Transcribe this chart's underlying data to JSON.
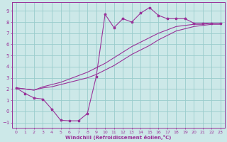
{
  "bg_color": "#cce8e8",
  "line_color": "#993399",
  "grid_color": "#99cccc",
  "xlabel": "Windchill (Refroidissement éolien,°C)",
  "xlabel_color": "#993399",
  "tick_color": "#993399",
  "xlim": [
    -0.5,
    23.5
  ],
  "ylim": [
    -1.5,
    9.8
  ],
  "yticks": [
    -1,
    0,
    1,
    2,
    3,
    4,
    5,
    6,
    7,
    8,
    9
  ],
  "xticks": [
    0,
    1,
    2,
    3,
    4,
    5,
    6,
    7,
    8,
    9,
    10,
    11,
    12,
    13,
    14,
    15,
    16,
    17,
    18,
    19,
    20,
    21,
    22,
    23
  ],
  "line1_x": [
    0,
    1,
    2,
    3,
    4,
    5,
    6,
    7,
    8,
    9,
    10,
    11,
    12,
    13,
    14,
    15,
    16,
    17,
    18,
    19,
    20,
    21,
    22,
    23
  ],
  "line1_y": [
    2.1,
    1.6,
    1.2,
    1.1,
    0.2,
    -0.8,
    -0.85,
    -0.85,
    -0.2,
    3.1,
    8.7,
    7.5,
    8.3,
    8.0,
    8.8,
    9.3,
    8.6,
    8.3,
    8.3,
    8.3,
    7.9,
    7.9,
    7.9,
    7.9
  ],
  "line2_x": [
    0,
    1,
    2,
    3,
    4,
    5,
    6,
    7,
    8,
    9,
    10,
    11,
    12,
    13,
    14,
    15,
    16,
    17,
    18,
    19,
    20,
    21,
    22,
    23
  ],
  "line2_y": [
    2.1,
    2.0,
    1.9,
    2.2,
    2.4,
    2.6,
    2.9,
    3.2,
    3.5,
    3.9,
    4.3,
    4.8,
    5.3,
    5.8,
    6.2,
    6.6,
    7.0,
    7.3,
    7.6,
    7.7,
    7.8,
    7.8,
    7.9,
    7.9
  ],
  "line3_x": [
    0,
    1,
    2,
    3,
    4,
    5,
    6,
    7,
    8,
    9,
    10,
    11,
    12,
    13,
    14,
    15,
    16,
    17,
    18,
    19,
    20,
    21,
    22,
    23
  ],
  "line3_y": [
    2.1,
    2.0,
    1.9,
    2.1,
    2.2,
    2.4,
    2.6,
    2.8,
    3.0,
    3.3,
    3.7,
    4.1,
    4.6,
    5.1,
    5.5,
    5.9,
    6.4,
    6.8,
    7.2,
    7.4,
    7.6,
    7.7,
    7.8,
    7.8
  ]
}
